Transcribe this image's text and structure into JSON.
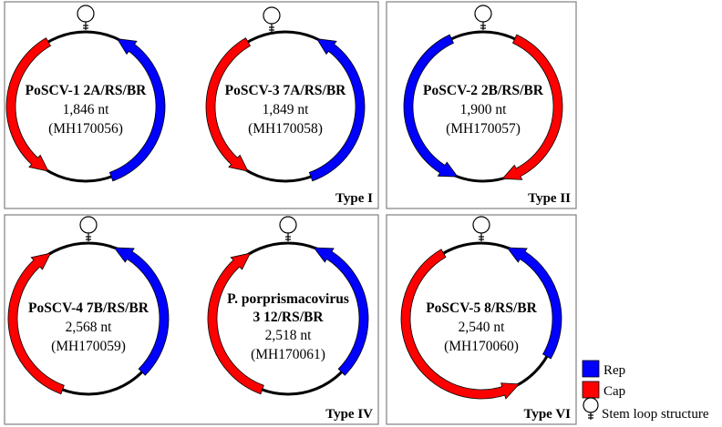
{
  "colors": {
    "rep": "#0000ff",
    "cap": "#ff0000"
  },
  "panels": [
    {
      "type_label": "Type I"
    },
    {
      "type_label": "Type II"
    },
    {
      "type_label": "Type IV"
    },
    {
      "type_label": "Type VI"
    }
  ],
  "genomes": [
    {
      "name": "PoSCV-1 2A/RS/BR",
      "length": "1,846 nt",
      "accession": "(MH170056)"
    },
    {
      "name": "PoSCV-3 7A/RS/BR",
      "length": "1,849 nt",
      "accession": "(MH170058)"
    },
    {
      "name": "PoSCV-2 2B/RS/BR",
      "length": "1,900 nt",
      "accession": "(MH170057)"
    },
    {
      "name": "PoSCV-4 7B/RS/BR",
      "length": "2,568 nt",
      "accession": "(MH170059)"
    },
    {
      "name": "P. porprismacovirus 3 12/RS/BR",
      "name_line1": "P. porprismacovirus",
      "name_line2": "3 12/RS/BR",
      "length": "2,518 nt",
      "accession": "(MH170061)"
    },
    {
      "name": "PoSCV-5 8/RS/BR",
      "length": "2,540 nt",
      "accession": "(MH170060)"
    }
  ],
  "legend": {
    "rep": {
      "label": "Rep"
    },
    "cap": {
      "label": "Cap"
    },
    "stem_loop": {
      "label": "Stem loop structure"
    }
  }
}
